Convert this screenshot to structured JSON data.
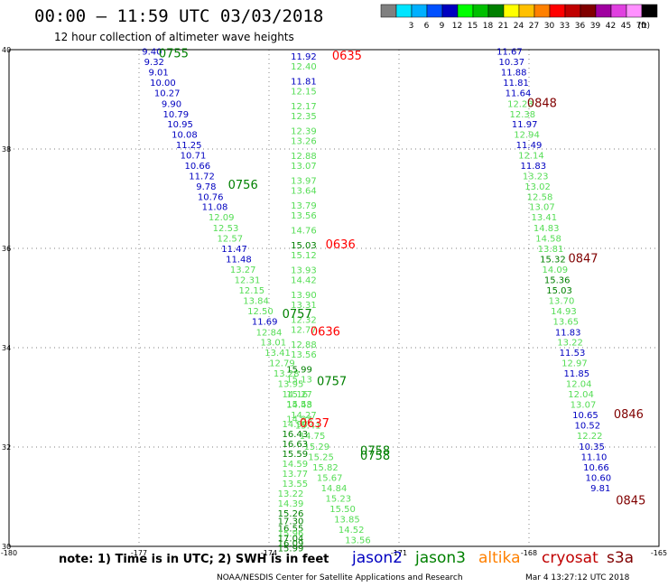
{
  "header": {
    "title": "00:00 – 11:59 UTC 03/03/2018",
    "subtitle": "12 hour collection of altimeter wave heights"
  },
  "scale": {
    "unit": "(ft)",
    "items": [
      {
        "color": "#808080",
        "label": ""
      },
      {
        "color": "#00e5ff",
        "label": "3"
      },
      {
        "color": "#00b0ff",
        "label": "6"
      },
      {
        "color": "#0050ff",
        "label": "9"
      },
      {
        "color": "#0000c0",
        "label": "12"
      },
      {
        "color": "#00ff00",
        "label": "15"
      },
      {
        "color": "#00c000",
        "label": "18"
      },
      {
        "color": "#008000",
        "label": "21"
      },
      {
        "color": "#ffff00",
        "label": "24"
      },
      {
        "color": "#ffc000",
        "label": "27"
      },
      {
        "color": "#ff8000",
        "label": "30"
      },
      {
        "color": "#ff0000",
        "label": "33"
      },
      {
        "color": "#c00000",
        "label": "36"
      },
      {
        "color": "#800000",
        "label": "39"
      },
      {
        "color": "#a000a0",
        "label": "42"
      },
      {
        "color": "#e040e0",
        "label": "45"
      },
      {
        "color": "#ff90ff",
        "label": "70"
      },
      {
        "color": "#000000",
        "label": ""
      }
    ]
  },
  "axes": {
    "x_ticks": [
      "-180",
      "-177",
      "-174",
      "-171",
      "-168",
      "-165"
    ],
    "y_ticks": [
      "40",
      "38",
      "36",
      "34",
      "32",
      "30"
    ]
  },
  "satellites": [
    {
      "name": "jason2",
      "color": "#0000c0"
    },
    {
      "name": "jason3",
      "color": "#008000"
    },
    {
      "name": "altika",
      "color": "#ff8000"
    },
    {
      "name": "cryosat",
      "color": "#c00000"
    },
    {
      "name": "s3a",
      "color": "#800000"
    }
  ],
  "note": "note: 1) Time is in UTC; 2) SWH is in feet",
  "credit": "NOAA/NESDIS Center for Satellite Applications and Research",
  "timestamp": "Mar  4 13:27:12 UTC 2018",
  "colors": {
    "blue": "#0000c0",
    "green": "#55dd55",
    "dgreen": "#008000",
    "red": "#ff0000",
    "maroon": "#800000"
  },
  "tracks": [
    {
      "name": "track-1",
      "points": [
        {
          "lon": -176.7,
          "lat": 39.9,
          "v": "9.40",
          "c": "blue"
        },
        {
          "lon": -176.65,
          "lat": 39.69,
          "v": "9.32",
          "c": "blue"
        },
        {
          "lon": -176.55,
          "lat": 39.48,
          "v": "9.01",
          "c": "blue"
        },
        {
          "lon": -176.45,
          "lat": 39.27,
          "v": "10.00",
          "c": "blue"
        },
        {
          "lon": -176.35,
          "lat": 39.06,
          "v": "10.27",
          "c": "blue"
        },
        {
          "lon": -176.25,
          "lat": 38.85,
          "v": "9.90",
          "c": "blue"
        },
        {
          "lon": -176.15,
          "lat": 38.64,
          "v": "10.79",
          "c": "blue"
        },
        {
          "lon": -176.05,
          "lat": 38.44,
          "v": "10.95",
          "c": "blue"
        },
        {
          "lon": -175.95,
          "lat": 38.23,
          "v": "10.08",
          "c": "blue"
        },
        {
          "lon": -175.85,
          "lat": 38.02,
          "v": "11.25",
          "c": "blue"
        },
        {
          "lon": -175.75,
          "lat": 37.81,
          "v": "10.71",
          "c": "blue"
        },
        {
          "lon": -175.65,
          "lat": 37.6,
          "v": "10.66",
          "c": "blue"
        },
        {
          "lon": -175.55,
          "lat": 37.39,
          "v": "11.72",
          "c": "blue"
        },
        {
          "lon": -175.45,
          "lat": 37.18,
          "v": "9.78",
          "c": "blue"
        },
        {
          "lon": -175.35,
          "lat": 36.97,
          "v": "10.76",
          "c": "blue"
        },
        {
          "lon": -175.25,
          "lat": 36.77,
          "v": "11.08",
          "c": "blue"
        },
        {
          "lon": -175.1,
          "lat": 36.56,
          "v": "12.09",
          "c": "green"
        },
        {
          "lon": -175.0,
          "lat": 36.35,
          "v": "12.53",
          "c": "green"
        },
        {
          "lon": -174.9,
          "lat": 36.14,
          "v": "12.57",
          "c": "green"
        },
        {
          "lon": -174.8,
          "lat": 35.93,
          "v": "11.47",
          "c": "blue"
        },
        {
          "lon": -174.7,
          "lat": 35.72,
          "v": "11.48",
          "c": "blue"
        },
        {
          "lon": -174.6,
          "lat": 35.51,
          "v": "13.27",
          "c": "green"
        },
        {
          "lon": -174.5,
          "lat": 35.3,
          "v": "12.31",
          "c": "green"
        },
        {
          "lon": -174.4,
          "lat": 35.09,
          "v": "12.15",
          "c": "green"
        },
        {
          "lon": -174.3,
          "lat": 34.88,
          "v": "13.84",
          "c": "green"
        },
        {
          "lon": -174.2,
          "lat": 34.67,
          "v": "12.50",
          "c": "green"
        },
        {
          "lon": -174.1,
          "lat": 34.46,
          "v": "11.69",
          "c": "blue"
        },
        {
          "lon": -174.0,
          "lat": 34.25,
          "v": "12.84",
          "c": "green"
        },
        {
          "lon": -173.9,
          "lat": 34.05,
          "v": "13.01",
          "c": "green"
        },
        {
          "lon": -173.8,
          "lat": 33.84,
          "v": "13.41",
          "c": "green"
        },
        {
          "lon": -173.7,
          "lat": 33.63,
          "v": "12.79",
          "c": "green"
        },
        {
          "lon": -173.6,
          "lat": 33.42,
          "v": "13.28",
          "c": "green"
        },
        {
          "lon": -173.5,
          "lat": 33.21,
          "v": "13.95",
          "c": "green"
        },
        {
          "lon": -173.4,
          "lat": 33.0,
          "v": "14.16",
          "c": "green"
        },
        {
          "lon": -173.3,
          "lat": 32.79,
          "v": "14.43",
          "c": "green"
        },
        {
          "lon": -173.2,
          "lat": 32.58,
          "v": "14.27",
          "c": "green"
        },
        {
          "lon": -173.1,
          "lat": 32.37,
          "v": "15.41",
          "c": "green"
        },
        {
          "lon": -173.0,
          "lat": 32.16,
          "v": "14.75",
          "c": "green"
        },
        {
          "lon": -172.9,
          "lat": 31.95,
          "v": "15.29",
          "c": "green"
        },
        {
          "lon": -172.8,
          "lat": 31.74,
          "v": "15.25",
          "c": "green"
        },
        {
          "lon": -172.7,
          "lat": 31.53,
          "v": "15.82",
          "c": "green"
        },
        {
          "lon": -172.6,
          "lat": 31.32,
          "v": "15.67",
          "c": "green"
        },
        {
          "lon": -172.5,
          "lat": 31.11,
          "v": "14.84",
          "c": "green"
        },
        {
          "lon": -172.4,
          "lat": 30.9,
          "v": "15.23",
          "c": "green"
        },
        {
          "lon": -172.3,
          "lat": 30.69,
          "v": "15.50",
          "c": "green"
        },
        {
          "lon": -172.2,
          "lat": 30.48,
          "v": "13.85",
          "c": "green"
        },
        {
          "lon": -172.1,
          "lat": 30.27,
          "v": "14.52",
          "c": "green"
        },
        {
          "lon": -171.95,
          "lat": 30.06,
          "v": "13.56",
          "c": "green"
        }
      ]
    },
    {
      "name": "track-2",
      "points": [
        {
          "lon": -173.2,
          "lat": 39.8,
          "v": "11.92",
          "c": "blue"
        },
        {
          "lon": -173.2,
          "lat": 39.6,
          "v": "12.40",
          "c": "green"
        },
        {
          "lon": -173.2,
          "lat": 39.3,
          "v": "11.81",
          "c": "blue"
        },
        {
          "lon": -173.2,
          "lat": 39.1,
          "v": "12.15",
          "c": "green"
        },
        {
          "lon": -173.2,
          "lat": 38.8,
          "v": "12.17",
          "c": "green"
        },
        {
          "lon": -173.2,
          "lat": 38.6,
          "v": "12.35",
          "c": "green"
        },
        {
          "lon": -173.2,
          "lat": 38.3,
          "v": "12.39",
          "c": "green"
        },
        {
          "lon": -173.2,
          "lat": 38.1,
          "v": "13.26",
          "c": "green"
        },
        {
          "lon": -173.2,
          "lat": 37.8,
          "v": "12.88",
          "c": "green"
        },
        {
          "lon": -173.2,
          "lat": 37.6,
          "v": "13.07",
          "c": "green"
        },
        {
          "lon": -173.2,
          "lat": 37.3,
          "v": "13.97",
          "c": "green"
        },
        {
          "lon": -173.2,
          "lat": 37.1,
          "v": "13.64",
          "c": "green"
        },
        {
          "lon": -173.2,
          "lat": 36.8,
          "v": "13.79",
          "c": "green"
        },
        {
          "lon": -173.2,
          "lat": 36.6,
          "v": "13.56",
          "c": "green"
        },
        {
          "lon": -173.2,
          "lat": 36.3,
          "v": "14.76",
          "c": "green"
        },
        {
          "lon": -173.2,
          "lat": 36.0,
          "v": "15.03",
          "c": "dgreen"
        },
        {
          "lon": -173.2,
          "lat": 35.8,
          "v": "15.12",
          "c": "green"
        },
        {
          "lon": -173.2,
          "lat": 35.5,
          "v": "13.93",
          "c": "green"
        },
        {
          "lon": -173.2,
          "lat": 35.3,
          "v": "14.42",
          "c": "green"
        },
        {
          "lon": -173.2,
          "lat": 35.0,
          "v": "13.90",
          "c": "green"
        },
        {
          "lon": -173.2,
          "lat": 34.8,
          "v": "13.31",
          "c": "green"
        },
        {
          "lon": -173.2,
          "lat": 34.5,
          "v": "12.32",
          "c": "green"
        },
        {
          "lon": -173.2,
          "lat": 34.3,
          "v": "12.77",
          "c": "green"
        },
        {
          "lon": -173.2,
          "lat": 34.0,
          "v": "12.88",
          "c": "green"
        },
        {
          "lon": -173.2,
          "lat": 33.8,
          "v": "13.56",
          "c": "green"
        },
        {
          "lon": -173.3,
          "lat": 33.5,
          "v": "15.99",
          "c": "dgreen"
        },
        {
          "lon": -173.3,
          "lat": 33.3,
          "v": "15.13",
          "c": "green"
        },
        {
          "lon": -173.3,
          "lat": 33.0,
          "v": "15.27",
          "c": "green"
        },
        {
          "lon": -173.3,
          "lat": 32.8,
          "v": "15.58",
          "c": "green"
        },
        {
          "lon": -173.3,
          "lat": 32.5,
          "v": "14.93",
          "c": "green"
        },
        {
          "lon": -173.4,
          "lat": 32.4,
          "v": "14.90",
          "c": "green"
        },
        {
          "lon": -173.4,
          "lat": 32.2,
          "v": "16.43",
          "c": "dgreen"
        },
        {
          "lon": -173.4,
          "lat": 32.0,
          "v": "16.63",
          "c": "dgreen"
        },
        {
          "lon": -173.4,
          "lat": 31.8,
          "v": "15.59",
          "c": "dgreen"
        },
        {
          "lon": -173.4,
          "lat": 31.6,
          "v": "14.59",
          "c": "green"
        },
        {
          "lon": -173.4,
          "lat": 31.4,
          "v": "13.77",
          "c": "green"
        },
        {
          "lon": -173.4,
          "lat": 31.2,
          "v": "13.55",
          "c": "green"
        },
        {
          "lon": -173.5,
          "lat": 31.0,
          "v": "13.22",
          "c": "green"
        },
        {
          "lon": -173.5,
          "lat": 30.8,
          "v": "14.39",
          "c": "green"
        },
        {
          "lon": -173.5,
          "lat": 30.6,
          "v": "15.26",
          "c": "dgreen"
        },
        {
          "lon": -173.5,
          "lat": 30.45,
          "v": "17.30",
          "c": "dgreen"
        },
        {
          "lon": -173.5,
          "lat": 30.3,
          "v": "16.55",
          "c": "dgreen"
        },
        {
          "lon": -173.5,
          "lat": 30.2,
          "v": "15.96",
          "c": "green"
        },
        {
          "lon": -173.5,
          "lat": 30.1,
          "v": "17.04",
          "c": "dgreen"
        },
        {
          "lon": -173.5,
          "lat": 30.0,
          "v": "16.09",
          "c": "dgreen"
        },
        {
          "lon": -173.5,
          "lat": 29.9,
          "v": "15.99",
          "c": "dgreen"
        }
      ]
    },
    {
      "name": "track-3",
      "points": [
        {
          "lon": -168.45,
          "lat": 39.9,
          "v": "11.67",
          "c": "blue"
        },
        {
          "lon": -168.4,
          "lat": 39.69,
          "v": "10.37",
          "c": "blue"
        },
        {
          "lon": -168.35,
          "lat": 39.48,
          "v": "11.88",
          "c": "blue"
        },
        {
          "lon": -168.3,
          "lat": 39.27,
          "v": "11.81",
          "c": "blue"
        },
        {
          "lon": -168.25,
          "lat": 39.06,
          "v": "11.64",
          "c": "blue"
        },
        {
          "lon": -168.2,
          "lat": 38.85,
          "v": "12.23",
          "c": "green"
        },
        {
          "lon": -168.15,
          "lat": 38.64,
          "v": "12.38",
          "c": "green"
        },
        {
          "lon": -168.1,
          "lat": 38.44,
          "v": "11.97",
          "c": "blue"
        },
        {
          "lon": -168.05,
          "lat": 38.23,
          "v": "12.94",
          "c": "green"
        },
        {
          "lon": -168.0,
          "lat": 38.02,
          "v": "11.49",
          "c": "blue"
        },
        {
          "lon": -167.95,
          "lat": 37.81,
          "v": "12.14",
          "c": "green"
        },
        {
          "lon": -167.9,
          "lat": 37.6,
          "v": "11.83",
          "c": "blue"
        },
        {
          "lon": -167.85,
          "lat": 37.39,
          "v": "13.23",
          "c": "green"
        },
        {
          "lon": -167.8,
          "lat": 37.18,
          "v": "13.02",
          "c": "green"
        },
        {
          "lon": -167.75,
          "lat": 36.97,
          "v": "12.58",
          "c": "green"
        },
        {
          "lon": -167.7,
          "lat": 36.77,
          "v": "13.07",
          "c": "green"
        },
        {
          "lon": -167.65,
          "lat": 36.56,
          "v": "13.41",
          "c": "green"
        },
        {
          "lon": -167.6,
          "lat": 36.35,
          "v": "14.83",
          "c": "green"
        },
        {
          "lon": -167.55,
          "lat": 36.14,
          "v": "14.58",
          "c": "green"
        },
        {
          "lon": -167.5,
          "lat": 35.93,
          "v": "13.81",
          "c": "green"
        },
        {
          "lon": -167.45,
          "lat": 35.72,
          "v": "15.32",
          "c": "dgreen"
        },
        {
          "lon": -167.4,
          "lat": 35.51,
          "v": "14.09",
          "c": "green"
        },
        {
          "lon": -167.35,
          "lat": 35.3,
          "v": "15.36",
          "c": "dgreen"
        },
        {
          "lon": -167.3,
          "lat": 35.09,
          "v": "15.03",
          "c": "dgreen"
        },
        {
          "lon": -167.25,
          "lat": 34.88,
          "v": "13.70",
          "c": "green"
        },
        {
          "lon": -167.2,
          "lat": 34.67,
          "v": "14.93",
          "c": "green"
        },
        {
          "lon": -167.15,
          "lat": 34.46,
          "v": "13.65",
          "c": "green"
        },
        {
          "lon": -167.1,
          "lat": 34.25,
          "v": "11.83",
          "c": "blue"
        },
        {
          "lon": -167.05,
          "lat": 34.05,
          "v": "13.22",
          "c": "green"
        },
        {
          "lon": -167.0,
          "lat": 33.84,
          "v": "11.53",
          "c": "blue"
        },
        {
          "lon": -166.95,
          "lat": 33.63,
          "v": "12.97",
          "c": "green"
        },
        {
          "lon": -166.9,
          "lat": 33.42,
          "v": "11.85",
          "c": "blue"
        },
        {
          "lon": -166.85,
          "lat": 33.21,
          "v": "12.04",
          "c": "green"
        },
        {
          "lon": -166.8,
          "lat": 33.0,
          "v": "12.04",
          "c": "green"
        },
        {
          "lon": -166.75,
          "lat": 32.79,
          "v": "13.07",
          "c": "green"
        },
        {
          "lon": -166.7,
          "lat": 32.58,
          "v": "10.65",
          "c": "blue"
        },
        {
          "lon": -166.65,
          "lat": 32.37,
          "v": "10.52",
          "c": "blue"
        },
        {
          "lon": -166.6,
          "lat": 32.16,
          "v": "12.22",
          "c": "green"
        },
        {
          "lon": -166.55,
          "lat": 31.95,
          "v": "10.35",
          "c": "blue"
        },
        {
          "lon": -166.5,
          "lat": 31.74,
          "v": "11.10",
          "c": "blue"
        },
        {
          "lon": -166.45,
          "lat": 31.53,
          "v": "10.66",
          "c": "blue"
        },
        {
          "lon": -166.4,
          "lat": 31.32,
          "v": "10.60",
          "c": "blue"
        },
        {
          "lon": -166.35,
          "lat": 31.11,
          "v": "9.81",
          "c": "blue"
        }
      ]
    }
  ],
  "time_labels": [
    {
      "lon": -176.2,
      "lat": 39.85,
      "t": "0755",
      "c": "dgreen"
    },
    {
      "lon": -174.6,
      "lat": 37.2,
      "t": "0756",
      "c": "dgreen"
    },
    {
      "lon": -173.35,
      "lat": 34.6,
      "t": "0757",
      "c": "dgreen"
    },
    {
      "lon": -172.55,
      "lat": 33.25,
      "t": "0757",
      "c": "dgreen"
    },
    {
      "lon": -171.55,
      "lat": 31.85,
      "t": "0758",
      "c": "dgreen"
    },
    {
      "lon": -171.55,
      "lat": 31.75,
      "t": "0758",
      "c": "dgreen"
    },
    {
      "lon": -172.2,
      "lat": 39.8,
      "t": "0635",
      "c": "red"
    },
    {
      "lon": -172.35,
      "lat": 36.0,
      "t": "0636",
      "c": "red"
    },
    {
      "lon": -172.7,
      "lat": 34.25,
      "t": "0636",
      "c": "red"
    },
    {
      "lon": -172.95,
      "lat": 32.4,
      "t": "0637",
      "c": "red"
    },
    {
      "lon": -167.7,
      "lat": 38.85,
      "t": "0848",
      "c": "maroon"
    },
    {
      "lon": -166.75,
      "lat": 35.72,
      "t": "0847",
      "c": "maroon"
    },
    {
      "lon": -165.7,
      "lat": 32.58,
      "t": "0846",
      "c": "maroon"
    },
    {
      "lon": -165.65,
      "lat": 30.85,
      "t": "0845",
      "c": "maroon"
    }
  ]
}
